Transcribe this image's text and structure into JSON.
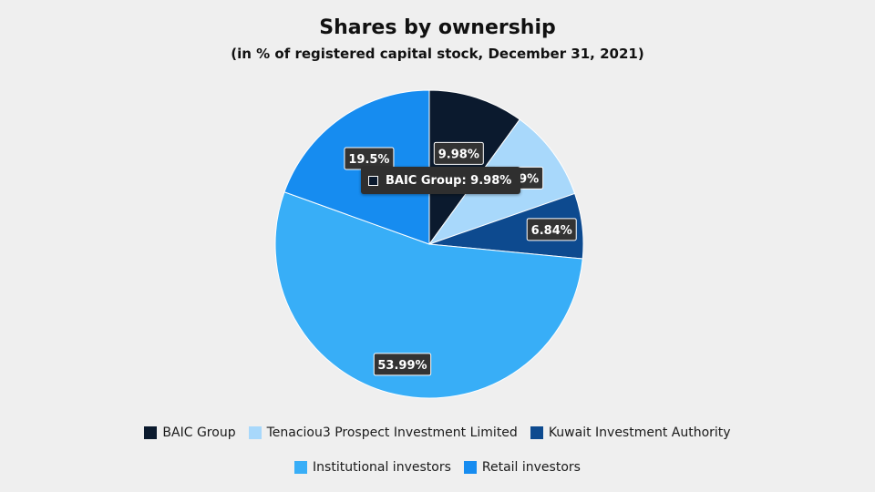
{
  "chart_data": {
    "type": "pie",
    "title": "Shares by ownership",
    "subtitle": "(in % of registered capital stock, December 31, 2021)",
    "slices": [
      {
        "name": "BAIC Group",
        "value": 9.98,
        "label": "9.98%",
        "color": "#0b1a2e"
      },
      {
        "name": "Tenaciou3 Prospect Investment Limited",
        "value": 9.69,
        "label": "9.69%",
        "color": "#a8d8fb"
      },
      {
        "name": "Kuwait Investment Authority",
        "value": 6.84,
        "label": "6.84%",
        "color": "#0d4a8f"
      },
      {
        "name": "Institutional investors",
        "value": 53.99,
        "label": "53.99%",
        "color": "#38aef7"
      },
      {
        "name": "Retail investors",
        "value": 19.5,
        "label": "19.5%",
        "color": "#168cf0"
      }
    ],
    "legend_rows": [
      [
        0,
        1,
        2
      ],
      [
        3,
        4
      ]
    ]
  },
  "tooltip": {
    "text": "BAIC Group: 9.98%"
  }
}
